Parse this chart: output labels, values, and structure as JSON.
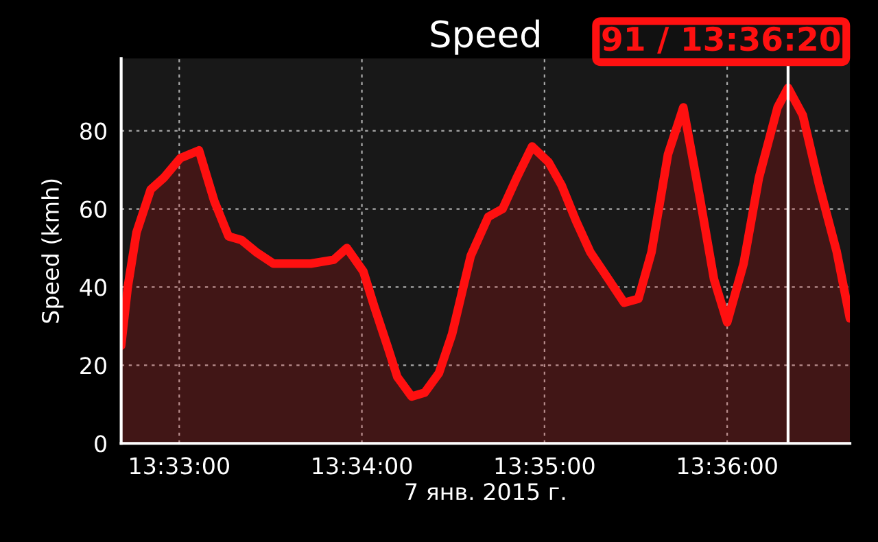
{
  "chart_data": {
    "type": "area",
    "title": "Speed",
    "xlabel": "7 янв. 2015 г.",
    "ylabel": "Speed (kmh)",
    "x": [
      13.5447,
      13.5453,
      13.5461,
      13.5474,
      13.5486,
      13.5501,
      13.5518,
      13.5532,
      13.5545,
      13.5557,
      13.557,
      13.5586,
      13.5601,
      13.562,
      13.5641,
      13.5653,
      13.5668,
      13.5678,
      13.5691,
      13.5699,
      13.5712,
      13.5724,
      13.5737,
      13.5749,
      13.5766,
      13.5782,
      13.5795,
      13.5808,
      13.5822,
      13.5837,
      13.5849,
      13.5862,
      13.5875,
      13.5887,
      13.5906,
      13.5919,
      13.5931,
      13.5946,
      13.596,
      13.5975,
      13.5988,
      13.6,
      13.6015,
      13.6029,
      13.6046,
      13.605556,
      13.6069,
      13.6084,
      13.61,
      13.6112
    ],
    "series": [
      {
        "color": "#ff1010",
        "values": [
          25,
          40,
          54,
          65,
          68,
          73,
          75,
          62,
          53,
          52,
          49,
          46,
          46,
          46,
          47,
          50,
          44,
          35,
          24,
          17,
          12,
          13,
          18,
          28,
          48,
          58,
          60,
          68,
          76,
          72,
          66,
          57,
          49,
          44,
          36,
          37,
          49,
          74,
          86,
          63,
          42,
          31,
          46,
          68,
          86,
          91,
          84,
          66,
          49,
          32
        ]
      }
    ],
    "xlim": [
      13.5447,
      13.6112
    ],
    "ylim": [
      0,
      98.5
    ],
    "xticks": [
      {
        "value": 13.55,
        "label": "13:33:00"
      },
      {
        "value": 13.566667,
        "label": "13:34:00"
      },
      {
        "value": 13.583333,
        "label": "13:35:00"
      },
      {
        "value": 13.6,
        "label": "13:36:00"
      }
    ],
    "yticks": [
      0,
      20,
      40,
      60,
      80
    ],
    "grid": true,
    "ref_lines": [
      {
        "axis": "x",
        "value": 13.605556,
        "color": "#ffffff"
      }
    ],
    "annotations": [
      {
        "text": "91 / 13:36:20",
        "x": 13.605556,
        "y": 91
      }
    ]
  }
}
